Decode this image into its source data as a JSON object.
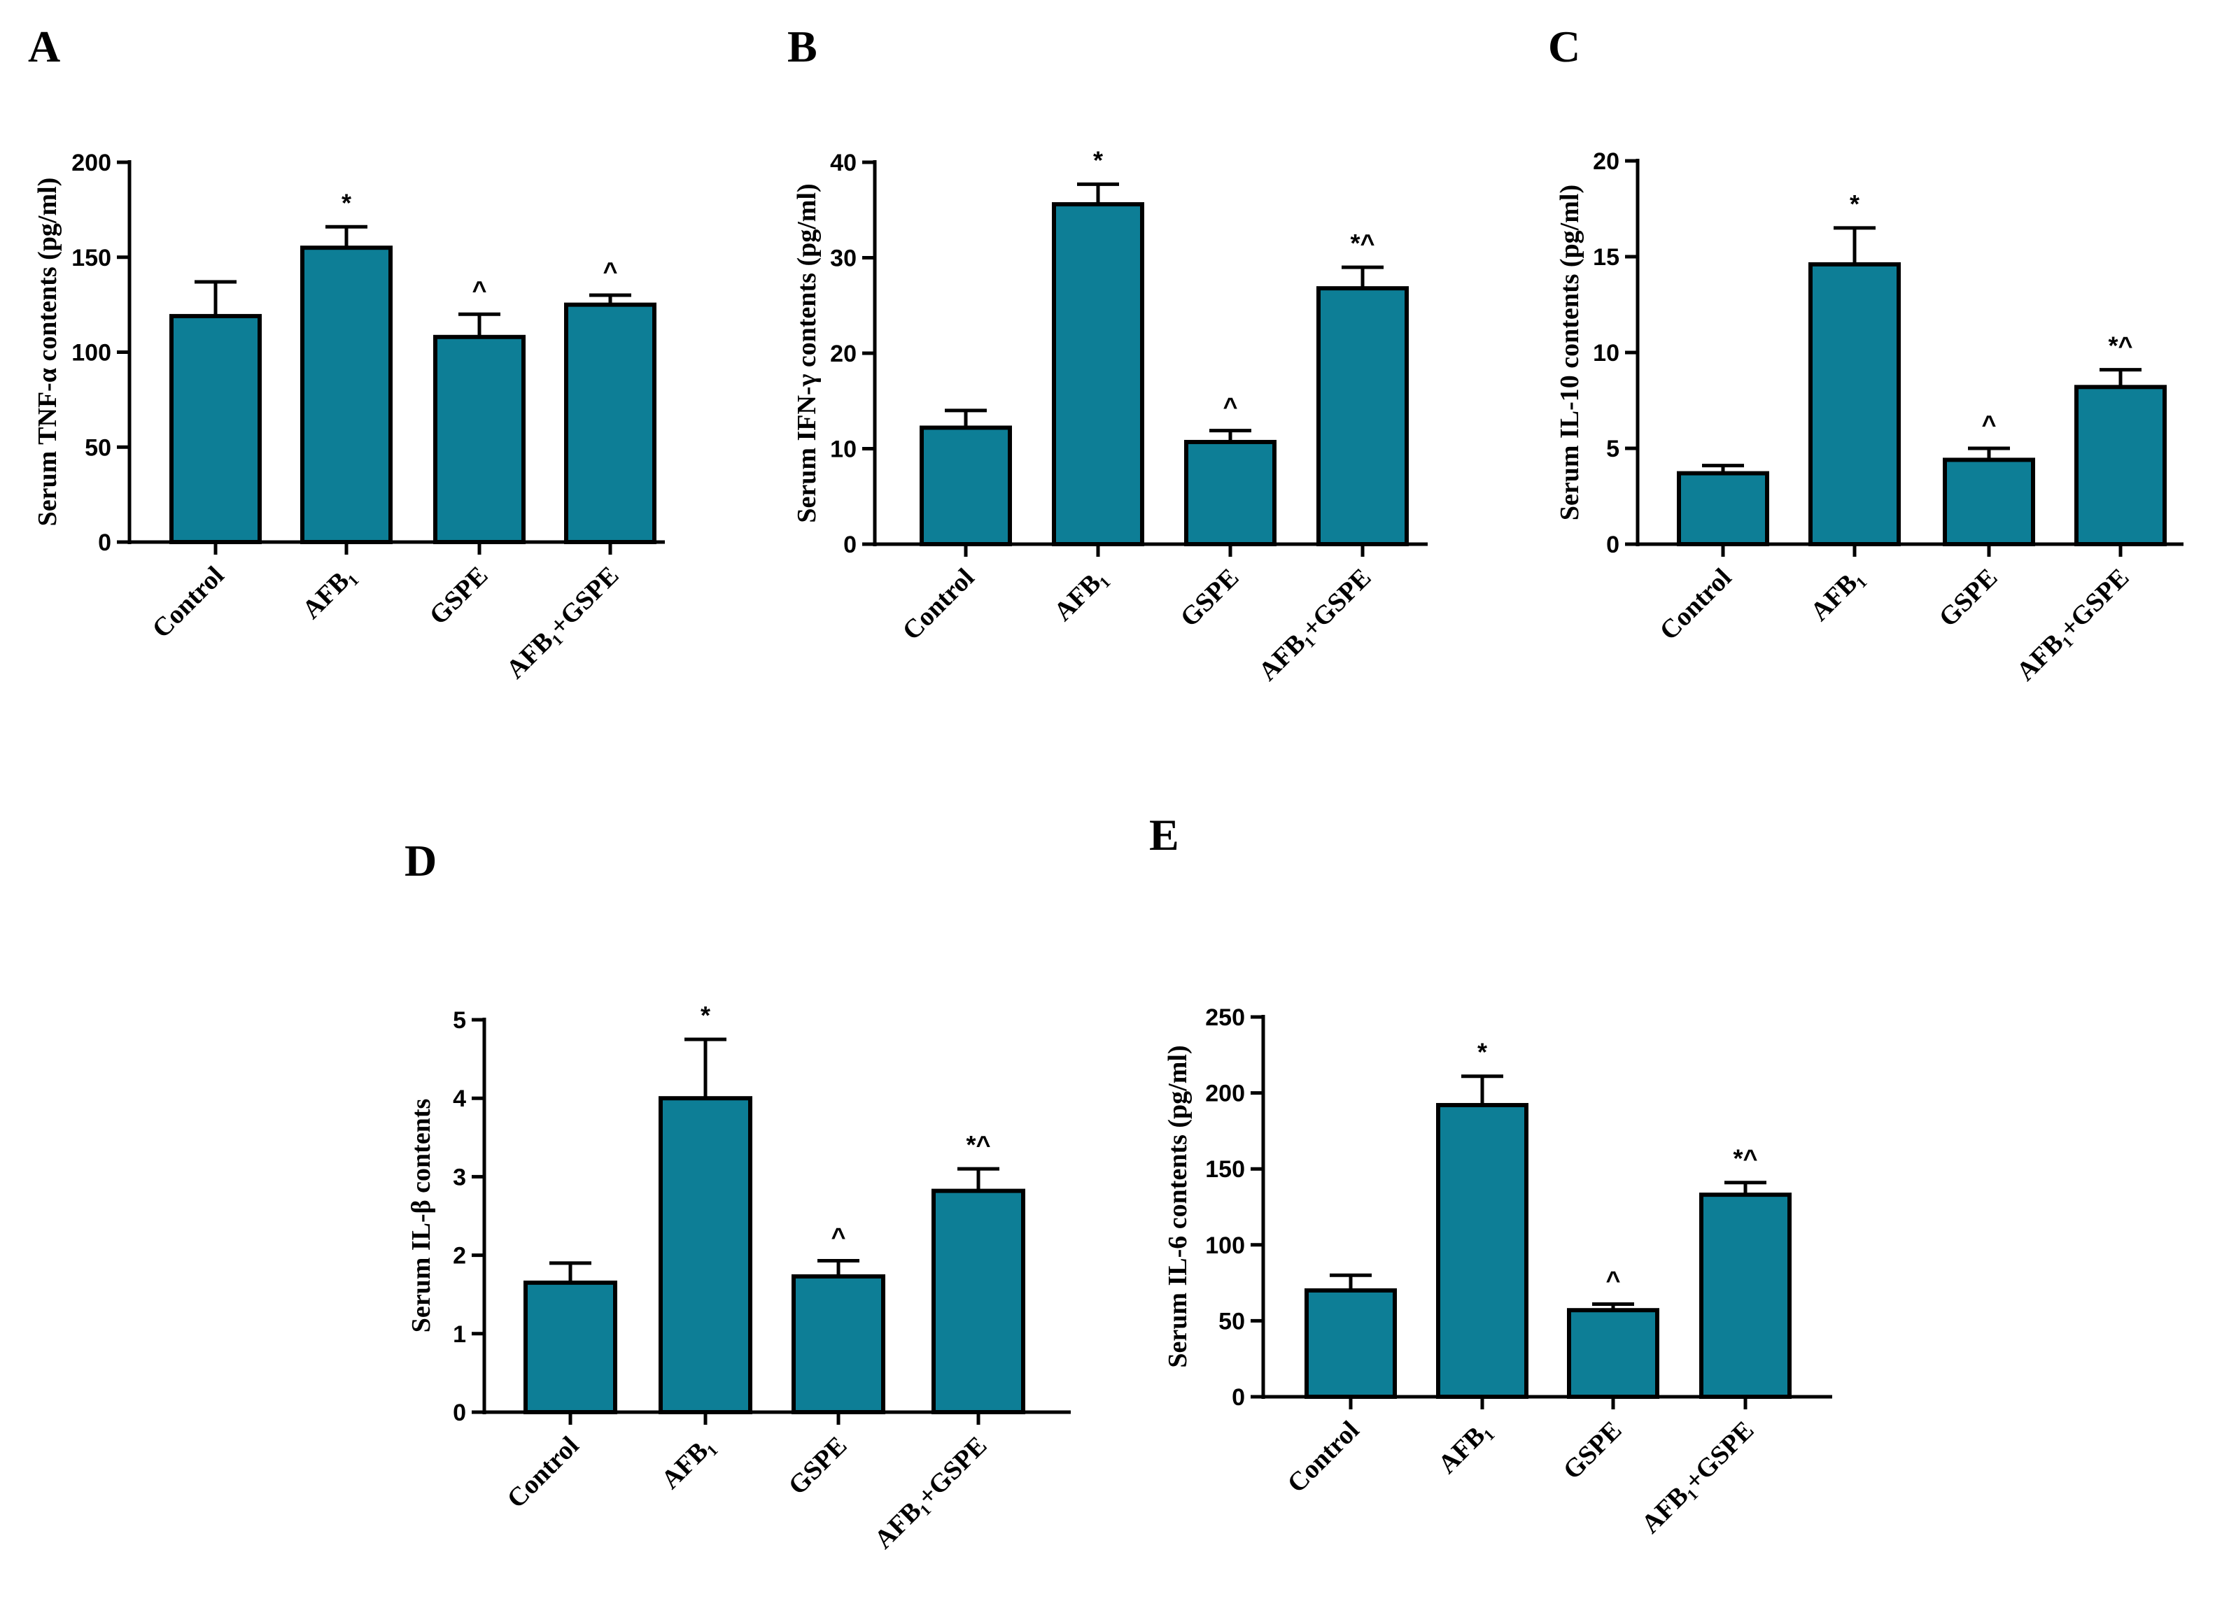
{
  "colors": {
    "bar_fill": "#0d7e96",
    "stroke": "#000000",
    "background": "#ffffff"
  },
  "chart_data": [
    {
      "panel": "A",
      "type": "bar",
      "ylabel": "Serum TNF-α contents (pg/ml)",
      "categories": [
        "Control",
        "AFB₁",
        "GSPE",
        "AFB₁+GSPE"
      ],
      "values": [
        119,
        155,
        108,
        125
      ],
      "errors": [
        18,
        11,
        12,
        5
      ],
      "significance": [
        "",
        "*",
        "^",
        "^"
      ],
      "ylim": [
        0,
        200
      ],
      "yticks": [
        0,
        50,
        100,
        150,
        200
      ]
    },
    {
      "panel": "B",
      "type": "bar",
      "ylabel": "Serum IFN-γ contents (pg/ml)",
      "categories": [
        "Control",
        "AFB₁",
        "GSPE",
        "AFB₁+GSPE"
      ],
      "values": [
        12.2,
        35.6,
        10.7,
        26.8
      ],
      "errors": [
        1.8,
        2.1,
        1.2,
        2.2
      ],
      "significance": [
        "",
        "*",
        "^",
        "*^"
      ],
      "ylim": [
        0,
        40
      ],
      "yticks": [
        0,
        10,
        20,
        30,
        40
      ]
    },
    {
      "panel": "C",
      "type": "bar",
      "ylabel": "Serum IL-10 contents (pg/ml)",
      "categories": [
        "Control",
        "AFB₁",
        "GSPE",
        "AFB₁+GSPE"
      ],
      "values": [
        3.7,
        14.6,
        4.4,
        8.2
      ],
      "errors": [
        0.4,
        1.9,
        0.6,
        0.9
      ],
      "significance": [
        "",
        "*",
        "^",
        "*^"
      ],
      "ylim": [
        0,
        20
      ],
      "yticks": [
        0,
        5,
        10,
        15,
        20
      ]
    },
    {
      "panel": "D",
      "type": "bar",
      "ylabel": "Serum IL-β contents",
      "categories": [
        "Control",
        "AFB₁",
        "GSPE",
        "AFB₁+GSPE"
      ],
      "values": [
        1.65,
        4.0,
        1.73,
        2.82
      ],
      "errors": [
        0.25,
        0.75,
        0.2,
        0.28
      ],
      "significance": [
        "",
        "*",
        "^",
        "*^"
      ],
      "ylim": [
        0,
        5
      ],
      "yticks": [
        0,
        1,
        2,
        3,
        4,
        5
      ]
    },
    {
      "panel": "E",
      "type": "bar",
      "ylabel": "Serum IL-6 contents (pg/ml)",
      "categories": [
        "Control",
        "AFB₁",
        "GSPE",
        "AFB₁+GSPE"
      ],
      "values": [
        70,
        192,
        57,
        133
      ],
      "errors": [
        10,
        19,
        4,
        8
      ],
      "significance": [
        "",
        "*",
        "^",
        "*^"
      ],
      "ylim": [
        0,
        250
      ],
      "yticks": [
        0,
        50,
        100,
        150,
        200,
        250
      ]
    }
  ]
}
